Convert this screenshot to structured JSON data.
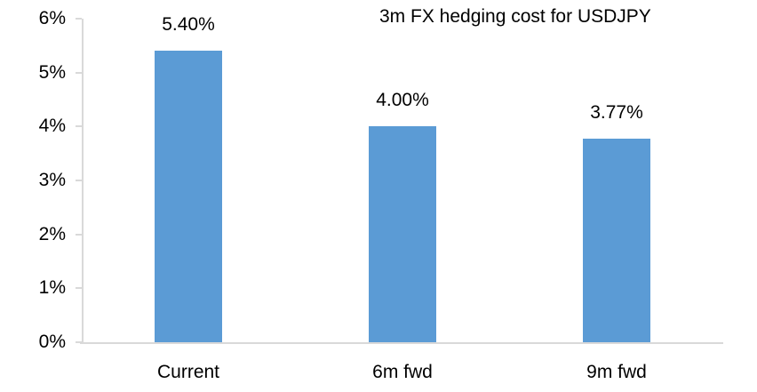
{
  "chart_data": {
    "type": "bar",
    "title": "3m FX hedging cost for USDJPY",
    "categories": [
      "Current",
      "6m fwd",
      "9m fwd"
    ],
    "values": [
      5.4,
      4.0,
      3.77
    ],
    "data_labels": [
      "5.40%",
      "4.00%",
      "3.77%"
    ],
    "y_ticks": [
      {
        "value": 0,
        "label": "0%"
      },
      {
        "value": 1,
        "label": "1%"
      },
      {
        "value": 2,
        "label": "2%"
      },
      {
        "value": 3,
        "label": "3%"
      },
      {
        "value": 4,
        "label": "4%"
      },
      {
        "value": 5,
        "label": "5%"
      },
      {
        "value": 6,
        "label": "6%"
      }
    ],
    "xlabel": "",
    "ylabel": "",
    "ylim": [
      0,
      6
    ],
    "grid": false,
    "legend": false,
    "bar_color": "#5b9bd5",
    "axis_color": "#d9d9d9",
    "text_color": "#000000"
  }
}
